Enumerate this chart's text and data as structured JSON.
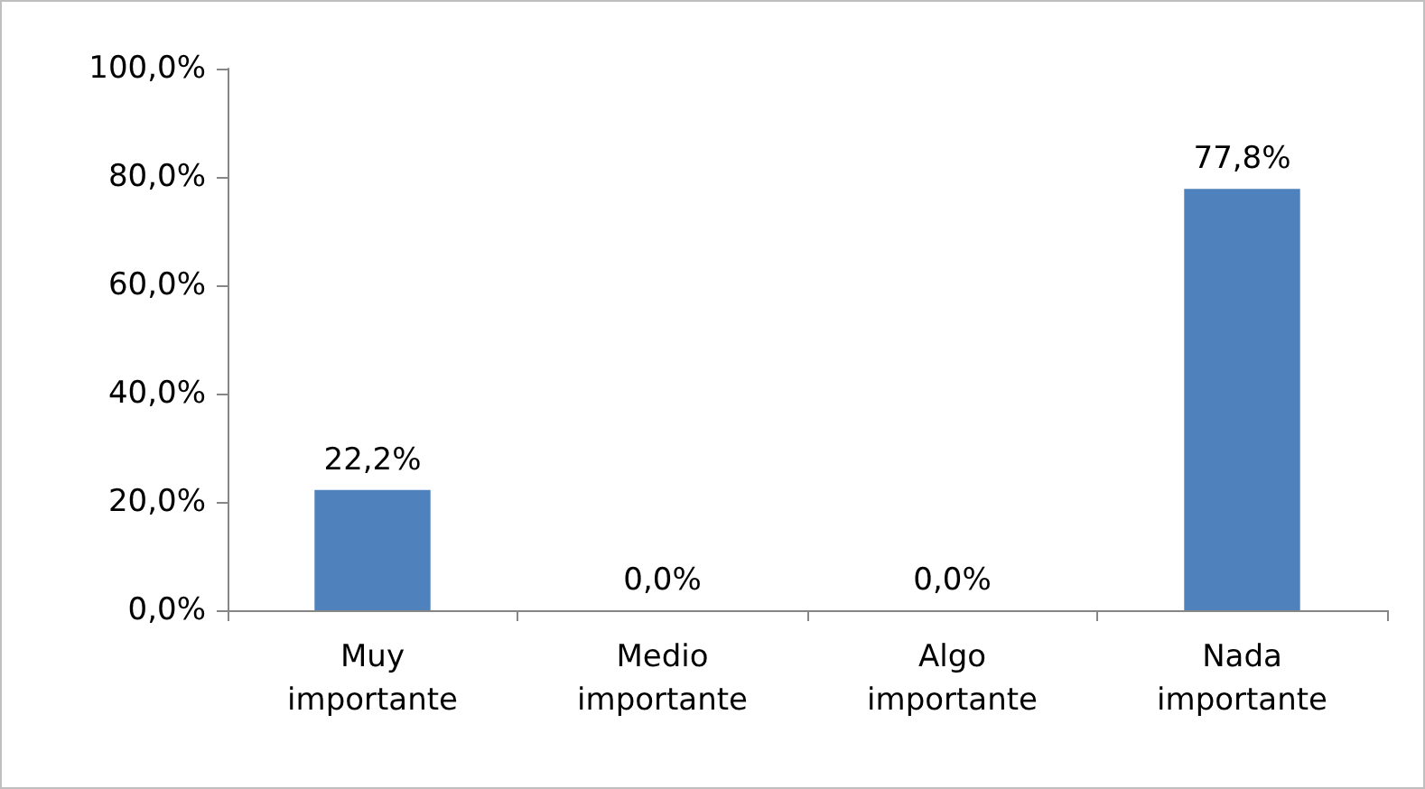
{
  "chart_data": {
    "type": "bar",
    "categories": [
      "Muy importante",
      "Medio importante",
      "Algo importante",
      "Nada importante"
    ],
    "values": [
      22.2,
      0.0,
      0.0,
      77.8
    ],
    "color": "#4f81bd",
    "value_labels": [
      "22,2%",
      "0,0%",
      "0,0%",
      "77,8%"
    ],
    "ylim": [
      0,
      100
    ],
    "yticks": [
      {
        "value": 0,
        "label": "0,0%"
      },
      {
        "value": 20,
        "label": "20,0%"
      },
      {
        "value": 40,
        "label": "40,0%"
      },
      {
        "value": 60,
        "label": "60,0%"
      },
      {
        "value": 80,
        "label": "80,0%"
      },
      {
        "value": 100,
        "label": "100,0%"
      }
    ],
    "grid": false
  }
}
